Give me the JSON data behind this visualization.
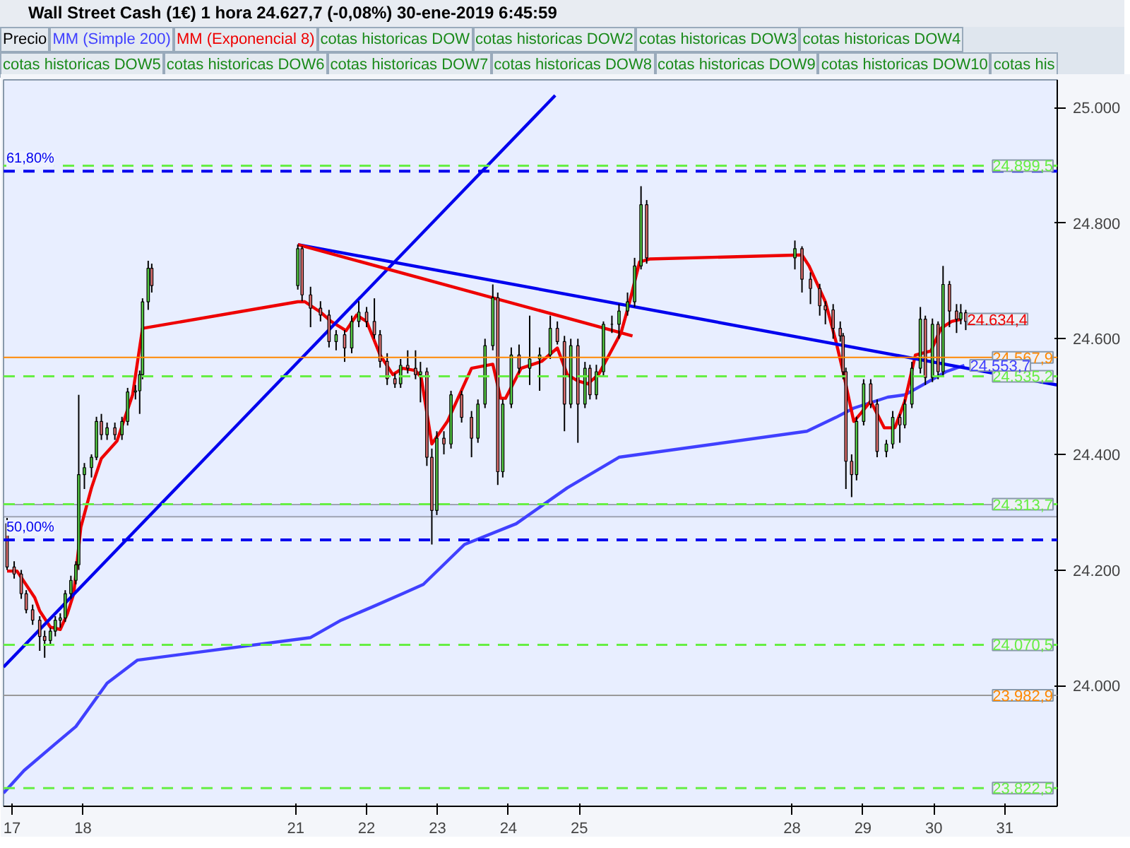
{
  "chart_data": {
    "type": "candlestick",
    "title": "Wall Street Cash (1€)   1 hora   24.627,7 (-0,08%)   30-ene-2019 6:45:59",
    "legend": "top left",
    "annotations": [
      "cotas historicas DOW",
      "cotas historicas DOW2",
      "cotas historicas DOW3",
      "cotas historicas DOW4",
      "cotas historicas DOW5",
      "cotas historicas DOW6",
      "cotas historicas DOW7",
      "cotas historicas DOW8",
      "cotas historicas DOW9",
      "cotas historicas DOW10",
      "cotas his",
      {
        "text": "24.634,4",
        "x": "2019-01-30T09:22",
        "y": 24634
      },
      {
        "text": "24.553,7",
        "x": "2019-01-30T10:19",
        "y": 24554
      },
      {
        "text": "61,80%",
        "y": 24890
      },
      {
        "text": "50,00%",
        "y": 24252
      }
    ],
    "ylim": [
      23791,
      25048
    ],
    "xlim": [
      "2019-01-16T21:07",
      "2019-01-31T17:46"
    ],
    "xticks": [
      {
        "value": "2019-01-17",
        "label": "17"
      },
      {
        "value": "2019-01-18",
        "label": "18"
      },
      {
        "value": "2019-01-21",
        "label": "21"
      },
      {
        "value": "2019-01-22",
        "label": "22"
      },
      {
        "value": "2019-01-23",
        "label": "23"
      },
      {
        "value": "2019-01-24",
        "label": "24"
      },
      {
        "value": "2019-01-25",
        "label": "25"
      },
      {
        "value": "2019-01-28",
        "label": "28"
      },
      {
        "value": "2019-01-29",
        "label": "29"
      },
      {
        "value": "2019-01-30",
        "label": "30"
      },
      {
        "value": "2019-01-31",
        "label": "31"
      }
    ],
    "yticks": [
      {
        "value": 24000,
        "label": "24.000"
      },
      {
        "value": 24200,
        "label": "24.200"
      },
      {
        "value": 24400,
        "label": "24.400"
      },
      {
        "value": 24600,
        "label": "24.600"
      },
      {
        "value": 24800,
        "label": "24.800"
      },
      {
        "value": 25000,
        "label": "25.000"
      }
    ],
    "ref_lines": [
      {
        "axis": "y",
        "value": 24890,
        "color": "#0000ee",
        "line_style": "dashed"
      },
      {
        "axis": "y",
        "value": 24252,
        "color": "#0000ee",
        "line_style": "dashed"
      },
      {
        "axis": "y",
        "value": 24899.5,
        "label": "24.899,5",
        "color": "#66ee44",
        "line_style": "dashed"
      },
      {
        "axis": "y",
        "value": 24535.2,
        "label": "24.535,2",
        "color": "#66ee44",
        "line_style": "dashed"
      },
      {
        "axis": "y",
        "value": 24313.7,
        "label": "24.313,7",
        "color": "#66ee44",
        "line_style": "dashed"
      },
      {
        "axis": "y",
        "value": 24070.5,
        "label": "24.070,5",
        "color": "#66ee44",
        "line_style": "dashed"
      },
      {
        "axis": "y",
        "value": 23822.5,
        "label": "23.822,5",
        "color": "#66ee44",
        "line_style": "dashed"
      },
      {
        "axis": "y",
        "value": 24567.9,
        "label": "24.567,9",
        "color": "#ff8800",
        "line_style": "solid"
      },
      {
        "axis": "y",
        "value": 23982.9,
        "label": "23.982,9",
        "color": "#999999",
        "line_style": "solid"
      }
    ],
    "bands": [
      {
        "axis": "y",
        "from": 24292,
        "to": 24313,
        "color": "#dde6ff"
      }
    ],
    "series": [
      {
        "name": "Precio",
        "x": [
          "2019-01-16T22:19",
          "2019-01-17T00:43",
          "2019-01-17T03:07",
          "2019-01-17T04:48",
          "2019-01-17T06:58",
          "2019-01-17T09:22",
          "2019-01-17T11:02",
          "2019-01-17T12:58",
          "2019-01-17T14:38",
          "2019-01-17T16:19",
          "2019-01-17T18:00",
          "2019-01-17T19:55",
          "2019-01-17T21:36",
          "2019-01-17T22:34",
          "2019-01-18T00:29",
          "2019-01-18T02:53",
          "2019-01-18T04:34",
          "2019-01-18T06:14",
          "2019-01-18T08:10",
          "2019-01-18T10:48",
          "2019-01-18T13:12",
          "2019-01-18T15:07",
          "2019-01-18T17:46",
          "2019-01-18T19:12",
          "2019-01-18T20:10",
          "2019-01-18T22:05",
          "2019-01-18T23:17",
          "2019-01-21T00:43",
          "2019-01-21T02:10",
          "2019-01-21T05:02",
          "2019-01-21T08:24",
          "2019-01-21T11:17",
          "2019-01-21T13:41",
          "2019-01-21T16:34",
          "2019-01-21T18:58",
          "2019-01-21T21:22",
          "2019-01-22T00:00",
          "2019-01-22T02:38",
          "2019-01-22T04:34",
          "2019-01-22T06:58",
          "2019-01-22T09:36",
          "2019-01-22T11:31",
          "2019-01-22T13:55",
          "2019-01-22T16:34",
          "2019-01-22T18:14",
          "2019-01-22T20:24",
          "2019-01-22T22:05",
          "2019-01-22T23:46",
          "2019-01-23T02:10",
          "2019-01-23T04:34",
          "2019-01-23T08:10",
          "2019-01-23T11:31",
          "2019-01-23T13:41",
          "2019-01-23T16:05",
          "2019-01-23T18:43",
          "2019-01-23T20:24",
          "2019-01-23T22:05",
          "2019-01-24T00:58",
          "2019-01-24T03:36",
          "2019-01-24T07:12",
          "2019-01-24T10:34",
          "2019-01-24T14:10",
          "2019-01-24T16:34",
          "2019-01-24T18:58",
          "2019-01-24T21:07",
          "2019-01-24T23:31",
          "2019-01-25T01:55",
          "2019-01-25T03:36",
          "2019-01-25T05:46",
          "2019-01-25T08:10",
          "2019-01-25T11:02",
          "2019-01-25T13:26",
          "2019-01-25T16:19",
          "2019-01-25T18:43",
          "2019-01-25T20:53",
          "2019-01-25T22:48",
          "2019-01-28T00:58",
          "2019-01-28T03:22",
          "2019-01-28T06:14",
          "2019-01-28T09:22",
          "2019-01-28T11:17",
          "2019-01-28T13:55",
          "2019-01-28T16:19",
          "2019-01-28T17:17",
          "2019-01-28T18:14",
          "2019-01-28T20:10",
          "2019-01-28T21:50",
          "2019-01-29T00:14",
          "2019-01-29T02:38",
          "2019-01-29T04:48",
          "2019-01-29T07:55",
          "2019-01-29T10:05",
          "2019-01-29T12:29",
          "2019-01-29T14:10",
          "2019-01-29T16:34",
          "2019-01-29T19:26",
          "2019-01-29T21:07",
          "2019-01-29T23:31",
          "2019-01-30T01:26",
          "2019-01-30T03:07",
          "2019-01-30T05:17",
          "2019-01-30T07:41",
          "2019-01-30T09:07",
          "2019-01-30T10:48"
        ],
        "ohlc": [
          [
            24280,
            24290,
            24200,
            24205
          ],
          [
            24205,
            24215,
            24185,
            24193
          ],
          [
            24193,
            24200,
            24150,
            24159
          ],
          [
            24159,
            24165,
            24125,
            24131
          ],
          [
            24131,
            24140,
            24105,
            24113
          ],
          [
            24113,
            24120,
            24060,
            24085
          ],
          [
            24085,
            24095,
            24048,
            24078
          ],
          [
            24078,
            24100,
            24070,
            24094
          ],
          [
            24094,
            24120,
            24085,
            24113
          ],
          [
            24113,
            24125,
            24100,
            24117
          ],
          [
            24117,
            24165,
            24110,
            24159
          ],
          [
            24159,
            24190,
            24150,
            24182
          ],
          [
            24182,
            24215,
            24175,
            24209
          ],
          [
            24209,
            24503,
            24200,
            24365
          ],
          [
            24365,
            24385,
            24340,
            24377
          ],
          [
            24377,
            24400,
            24360,
            24395
          ],
          [
            24395,
            24465,
            24390,
            24457
          ],
          [
            24457,
            24470,
            24425,
            24434
          ],
          [
            24434,
            24455,
            24425,
            24446
          ],
          [
            24446,
            24455,
            24425,
            24434
          ],
          [
            24434,
            24465,
            24425,
            24457
          ],
          [
            24457,
            24515,
            24450,
            24508
          ],
          [
            24508,
            24520,
            24495,
            24510
          ],
          [
            24510,
            24545,
            24470,
            24538
          ],
          [
            24538,
            24670,
            24530,
            24664
          ],
          [
            24664,
            24735,
            24650,
            24722
          ],
          [
            24722,
            24730,
            24680,
            24692
          ],
          [
            24692,
            24763,
            24685,
            24756
          ],
          [
            24756,
            24760,
            24665,
            24676
          ],
          [
            24676,
            24690,
            24620,
            24653
          ],
          [
            24653,
            24665,
            24630,
            24641
          ],
          [
            24641,
            24650,
            24585,
            24595
          ],
          [
            24595,
            24615,
            24580,
            24607
          ],
          [
            24607,
            24615,
            24560,
            24584
          ],
          [
            24584,
            24640,
            24575,
            24630
          ],
          [
            24630,
            24665,
            24620,
            24646
          ],
          [
            24646,
            24655,
            24620,
            24630
          ],
          [
            24630,
            24670,
            24600,
            24607
          ],
          [
            24607,
            24615,
            24550,
            24561
          ],
          [
            24561,
            24575,
            24520,
            24531
          ],
          [
            24531,
            24540,
            24515,
            24522
          ],
          [
            24522,
            24565,
            24515,
            24554
          ],
          [
            24554,
            24580,
            24540,
            24549
          ],
          [
            24549,
            24580,
            24530,
            24538
          ],
          [
            24538,
            24560,
            24490,
            24543
          ],
          [
            24543,
            24550,
            24380,
            24395
          ],
          [
            24395,
            24410,
            24244,
            24303
          ],
          [
            24303,
            24440,
            24295,
            24428
          ],
          [
            24428,
            24440,
            24400,
            24418
          ],
          [
            24418,
            24510,
            24410,
            24503
          ],
          [
            24503,
            24510,
            24455,
            24464
          ],
          [
            24464,
            24475,
            24395,
            24428
          ],
          [
            24428,
            24495,
            24420,
            24487
          ],
          [
            24487,
            24600,
            24480,
            24588
          ],
          [
            24588,
            24694,
            24580,
            24671
          ],
          [
            24671,
            24680,
            24347,
            24370
          ],
          [
            24370,
            24495,
            24360,
            24487
          ],
          [
            24487,
            24585,
            24480,
            24572
          ],
          [
            24572,
            24590,
            24540,
            24549
          ],
          [
            24549,
            24640,
            24520,
            24565
          ],
          [
            24565,
            24585,
            24510,
            24572
          ],
          [
            24572,
            24640,
            24565,
            24618
          ],
          [
            24618,
            24630,
            24590,
            24595
          ],
          [
            24595,
            24605,
            24440,
            24487
          ],
          [
            24487,
            24600,
            24480,
            24588
          ],
          [
            24588,
            24600,
            24420,
            24487
          ],
          [
            24487,
            24560,
            24480,
            24549
          ],
          [
            24549,
            24555,
            24495,
            24503
          ],
          [
            24503,
            24555,
            24495,
            24543
          ],
          [
            24543,
            24630,
            24535,
            24625
          ],
          [
            24625,
            24640,
            24610,
            24625
          ],
          [
            24625,
            24660,
            24600,
            24648
          ],
          [
            24648,
            24680,
            24640,
            24664
          ],
          [
            24664,
            24740,
            24655,
            24726
          ],
          [
            24726,
            24864,
            24720,
            24832
          ],
          [
            24832,
            24840,
            24730,
            24740
          ],
          [
            24740,
            24770,
            24720,
            24756
          ],
          [
            24756,
            24760,
            24680,
            24703
          ],
          [
            24703,
            24715,
            24660,
            24687
          ],
          [
            24687,
            24695,
            24640,
            24657
          ],
          [
            24657,
            24665,
            24625,
            24650
          ],
          [
            24650,
            24660,
            24600,
            24618
          ],
          [
            24618,
            24630,
            24595,
            24605
          ],
          [
            24605,
            24610,
            24530,
            24543
          ],
          [
            24543,
            24550,
            24340,
            24388
          ],
          [
            24388,
            24400,
            24326,
            24365
          ],
          [
            24365,
            24465,
            24355,
            24457
          ],
          [
            24457,
            24530,
            24450,
            24522
          ],
          [
            24522,
            24530,
            24480,
            24487
          ],
          [
            24487,
            24495,
            24395,
            24405
          ],
          [
            24405,
            24425,
            24395,
            24418
          ],
          [
            24418,
            24475,
            24410,
            24464
          ],
          [
            24464,
            24470,
            24420,
            24451
          ],
          [
            24451,
            24495,
            24445,
            24487
          ],
          [
            24487,
            24560,
            24480,
            24549
          ],
          [
            24549,
            24655,
            24540,
            24634
          ],
          [
            24634,
            24640,
            24520,
            24533
          ],
          [
            24533,
            24635,
            24525,
            24625
          ],
          [
            24625,
            24630,
            24530,
            24543
          ],
          [
            24543,
            24726,
            24535,
            24694
          ],
          [
            24694,
            24700,
            24620,
            24648
          ],
          [
            24648,
            24660,
            24610,
            24634
          ],
          [
            24634,
            24660,
            24625,
            24645
          ],
          [
            24645,
            24650,
            24615,
            24630
          ]
        ]
      },
      {
        "name": "MM (Simple 200)",
        "type": "line",
        "color": "#4040ff",
        "x": [
          "2019-01-16T21:07",
          "2019-01-17T04:05",
          "2019-01-17T14:38",
          "2019-01-17T21:36",
          "2019-01-18T08:10",
          "2019-01-18T18:29",
          "2019-01-21T05:02",
          "2019-01-21T15:22",
          "2019-01-22T01:55",
          "2019-01-22T12:14",
          "2019-01-22T19:12",
          "2019-01-23T09:07",
          "2019-01-24T02:38",
          "2019-01-24T19:55",
          "2019-01-25T13:26",
          "2019-01-28T05:02",
          "2019-01-28T14:53",
          "2019-01-28T20:53",
          "2019-01-29T08:24",
          "2019-01-29T14:10",
          "2019-01-29T20:10",
          "2019-01-30T04:05",
          "2019-01-30T10:19"
        ],
        "values": [
          23814,
          23853,
          23899,
          23929,
          24004,
          24044,
          24083,
          24113,
          24136,
          24159,
          24175,
          24244,
          24280,
          24342,
          24395,
          24440,
          24464,
          24480,
          24499,
          24503,
          24520,
          24543,
          24554
        ]
      },
      {
        "name": "MM (Exponencial 8)",
        "type": "line",
        "color": "#ee0000",
        "x": [
          "2019-01-16T22:19",
          "2019-01-17T01:41",
          "2019-01-17T07:41",
          "2019-01-17T09:22",
          "2019-01-17T12:58",
          "2019-01-17T16:19",
          "2019-01-17T18:43",
          "2019-01-17T20:53",
          "2019-01-17T23:17",
          "2019-01-18T02:53",
          "2019-01-18T06:14",
          "2019-01-18T11:31",
          "2019-01-18T16:48",
          "2019-01-18T20:10",
          "2019-01-21T00:43",
          "2019-01-21T03:07",
          "2019-01-21T08:24",
          "2019-01-21T12:00",
          "2019-01-21T17:02",
          "2019-01-21T20:38",
          "2019-01-22T00:00",
          "2019-01-22T04:34",
          "2019-01-22T08:53",
          "2019-01-22T12:14",
          "2019-01-22T16:34",
          "2019-01-22T18:29",
          "2019-01-22T22:05",
          "2019-01-23T03:22",
          "2019-01-23T11:31",
          "2019-01-23T18:43",
          "2019-01-23T21:22",
          "2019-01-23T23:02",
          "2019-01-24T04:19",
          "2019-01-24T11:17",
          "2019-01-24T16:34",
          "2019-01-24T19:55",
          "2019-01-24T23:31",
          "2019-01-25T02:53",
          "2019-01-25T06:29",
          "2019-01-25T10:05",
          "2019-01-25T14:10",
          "2019-01-25T17:02",
          "2019-01-25T20:24",
          "2019-01-25T23:46",
          "2019-01-28T03:22",
          "2019-01-28T05:46",
          "2019-01-28T11:17",
          "2019-01-28T14:53",
          "2019-01-28T17:17",
          "2019-01-28T20:53",
          "2019-01-28T23:17",
          "2019-01-29T02:38",
          "2019-01-29T07:12",
          "2019-01-29T10:48",
          "2019-01-29T14:10",
          "2019-01-29T17:46",
          "2019-01-29T23:02",
          "2019-01-30T02:24",
          "2019-01-30T06:00",
          "2019-01-30T09:22"
        ],
        "values": [
          24198,
          24198,
          24152,
          24129,
          24101,
          24097,
          24124,
          24159,
          24274,
          24342,
          24393,
          24423,
          24503,
          24618,
          24664,
          24664,
          24646,
          24630,
          24614,
          24641,
          24630,
          24572,
          24538,
          24549,
          24545,
          24533,
          24418,
          24457,
          24549,
          24556,
          24497,
          24497,
          24549,
          24561,
          24584,
          24538,
          24527,
          24522,
          24538,
          24572,
          24611,
          24664,
          24733,
          24738,
          24745,
          24726,
          24664,
          24595,
          24543,
          24457,
          24471,
          24492,
          24446,
          24446,
          24492,
          24572,
          24579,
          24618,
          24630,
          24634
        ]
      },
      {
        "type": "line",
        "color": "#0000ee",
        "x": [
          "2019-01-16T21:07",
          "2019-01-24T15:50"
        ],
        "values": [
          24032,
          25021
        ]
      },
      {
        "type": "line",
        "color": "#0000ee",
        "x": [
          "2019-01-21T00:43",
          "2019-01-31T17:46"
        ],
        "values": [
          24763,
          24520
        ]
      },
      {
        "type": "line",
        "color": "#ee0000",
        "x": [
          "2019-01-21T00:43",
          "2019-01-25T18:00"
        ],
        "values": [
          24763,
          24605
        ]
      }
    ]
  }
}
